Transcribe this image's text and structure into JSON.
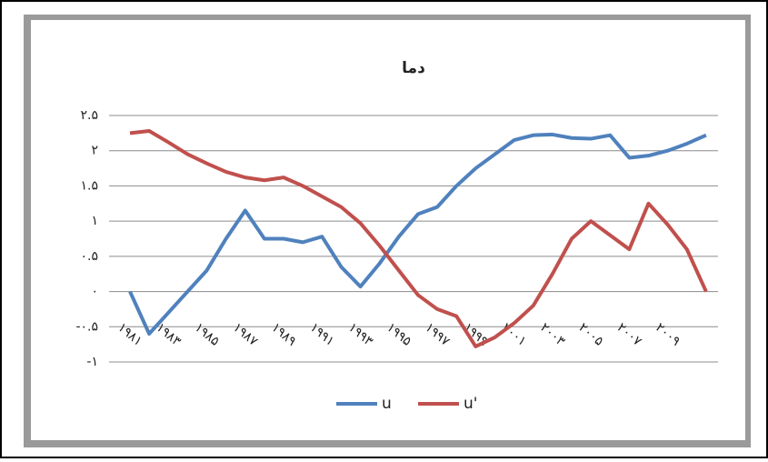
{
  "chart_data": {
    "type": "line",
    "title": "دما",
    "categories": [
      "۱۹۸۱",
      null,
      "۱۹۸۳",
      null,
      "۱۹۸۵",
      null,
      "۱۹۸۷",
      null,
      "۱۹۸۹",
      null,
      "۱۹۹۱",
      null,
      "۱۹۹۳",
      null,
      "۱۹۹۵",
      null,
      "۱۹۹۷",
      null,
      "۱۹۹۹",
      null,
      "۲۰۰۱",
      null,
      "۲۰۰۳",
      null,
      "۲۰۰۵",
      null,
      "۲۰۰۷",
      null,
      "۲۰۰۹",
      null,
      null
    ],
    "series": [
      {
        "name": "u",
        "color": "#4f81bd",
        "values": [
          0,
          -0.6,
          -0.3,
          0,
          0.3,
          0.75,
          1.15,
          0.75,
          0.75,
          0.7,
          0.78,
          0.35,
          0.07,
          0.4,
          0.78,
          1.1,
          1.2,
          1.5,
          1.75,
          1.95,
          2.15,
          2.22,
          2.23,
          2.18,
          2.17,
          2.22,
          1.9,
          1.93,
          2.0,
          2.1,
          2.22
        ]
      },
      {
        "name": "u'",
        "color": "#c0504d",
        "values": [
          2.25,
          2.28,
          2.12,
          1.95,
          1.82,
          1.7,
          1.62,
          1.58,
          1.62,
          1.5,
          1.35,
          1.2,
          0.97,
          0.65,
          0.3,
          -0.05,
          -0.25,
          -0.35,
          -0.78,
          -0.65,
          -0.45,
          -0.2,
          0.25,
          0.75,
          1.0,
          0.8,
          0.6,
          1.25,
          0.95,
          0.6,
          0.0
        ]
      }
    ],
    "ylim": [
      -1,
      2.5
    ],
    "yticks": [
      {
        "value": -1,
        "label": "-۱"
      },
      {
        "value": -0.5,
        "label": "-۰.۵"
      },
      {
        "value": 0,
        "label": "۰"
      },
      {
        "value": 0.5,
        "label": "۰.۵"
      },
      {
        "value": 1,
        "label": "۱"
      },
      {
        "value": 1.5,
        "label": "۱.۵"
      },
      {
        "value": 2,
        "label": "۲"
      },
      {
        "value": 2.5,
        "label": "۲.۵"
      }
    ],
    "grid": true,
    "legend": "bottom"
  }
}
